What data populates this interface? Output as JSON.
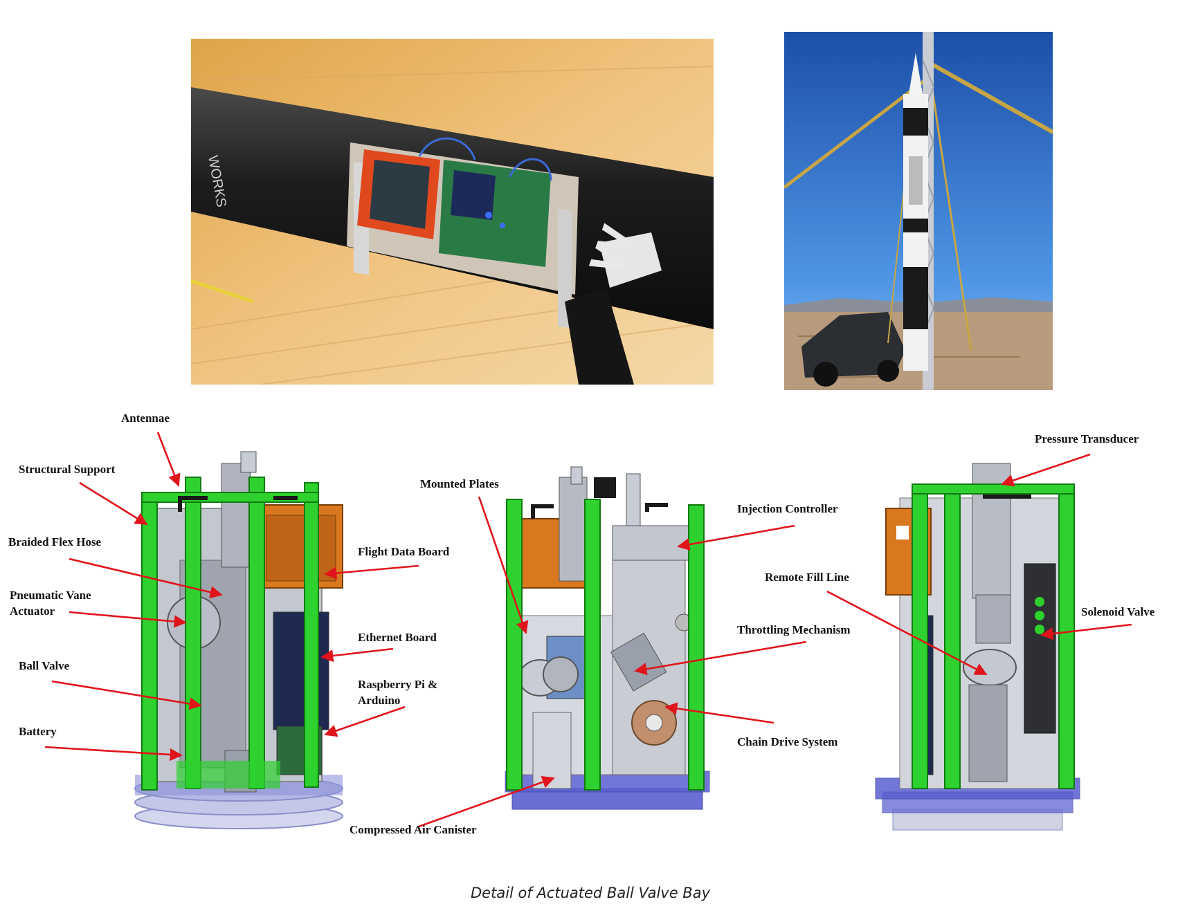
{
  "photos": {
    "avionics_bay": {
      "alt_subject": "avionics bay on carbon fiber airframe"
    },
    "rocket_on_pad": {
      "alt_subject": "rocket on launch rail"
    }
  },
  "airframe_text": {
    "brand": "WORKS",
    "letters": "W"
  },
  "views": [
    {
      "labels": [
        {
          "id": "antennae",
          "text": "Antennae"
        },
        {
          "id": "structural_support",
          "text": "Structural Support"
        },
        {
          "id": "braided_flex_hose",
          "text": "Braided Flex Hose"
        },
        {
          "id": "pneumatic_vane_actuator",
          "text": [
            "Pneumatic Vane",
            "Actuator"
          ]
        },
        {
          "id": "ball_valve",
          "text": "Ball Valve"
        },
        {
          "id": "battery",
          "text": "Battery"
        },
        {
          "id": "flight_data_board",
          "text": "Flight Data Board"
        },
        {
          "id": "ethernet_board",
          "text": "Ethernet Board"
        },
        {
          "id": "raspberry_pi_arduino",
          "text": [
            "Raspberry Pi &",
            "Arduino"
          ]
        }
      ]
    },
    {
      "labels": [
        {
          "id": "mounted_plates",
          "text": "Mounted Plates"
        },
        {
          "id": "injection_controller",
          "text": "Injection Controller"
        },
        {
          "id": "throttling_mechanism",
          "text": "Throttling Mechanism"
        },
        {
          "id": "chain_drive_system",
          "text": "Chain Drive System"
        },
        {
          "id": "compressed_air_canister",
          "text": "Compressed Air Canister"
        }
      ]
    },
    {
      "labels": [
        {
          "id": "pressure_transducer",
          "text": "Pressure Transducer"
        },
        {
          "id": "remote_fill_line",
          "text": "Remote Fill Line"
        },
        {
          "id": "solenoid_valve",
          "text": "Solenoid Valve"
        }
      ]
    }
  ],
  "caption": "Detail of Actuated Ball Valve Bay",
  "colors": {
    "arrow": "#e0141b",
    "frame": "#2ed12e",
    "board": "#d9781e",
    "base": "#4a4fd0",
    "metal": "#b7bcc6"
  }
}
